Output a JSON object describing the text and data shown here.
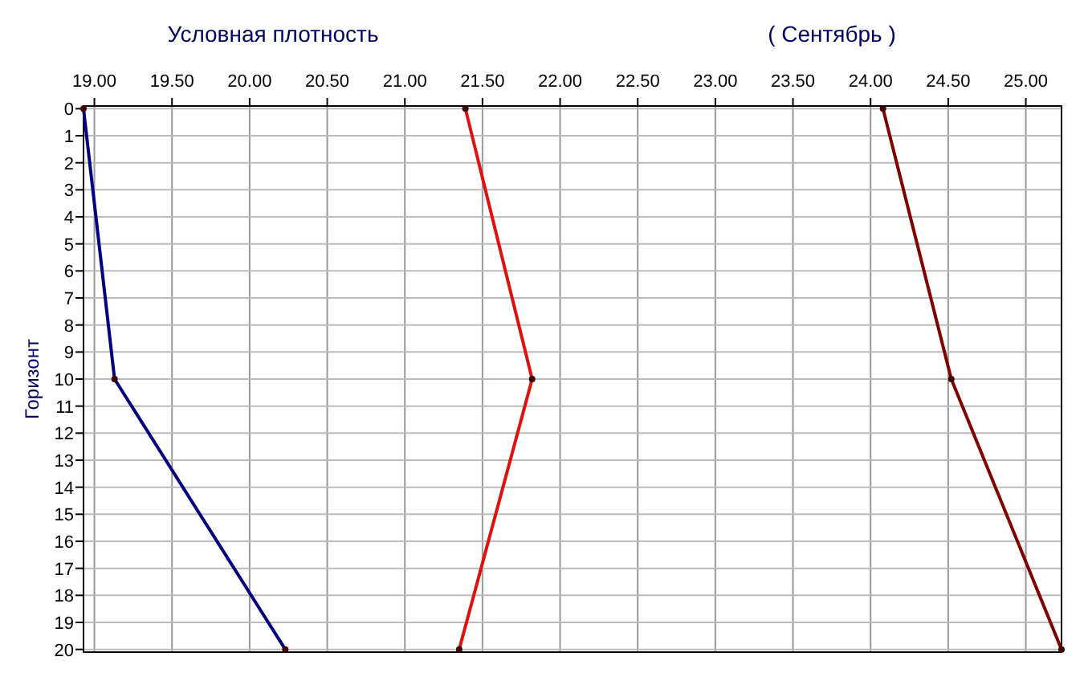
{
  "chart_data": {
    "type": "line",
    "title": "Условная плотность",
    "subtitle": "( Сентябрь )",
    "ylabel": "Горизонт",
    "xlim": [
      18.93,
      25.23
    ],
    "xticks": [
      {
        "value": 19,
        "label": "19.00"
      },
      {
        "value": 19.5,
        "label": "19.50"
      },
      {
        "value": 20,
        "label": "20.00"
      },
      {
        "value": 20.5,
        "label": "20.50"
      },
      {
        "value": 21,
        "label": "21.00"
      },
      {
        "value": 21.5,
        "label": "21.50"
      },
      {
        "value": 22,
        "label": "22.00"
      },
      {
        "value": 22.5,
        "label": "22.50"
      },
      {
        "value": 23,
        "label": "23.00"
      },
      {
        "value": 23.5,
        "label": "23.50"
      },
      {
        "value": 24,
        "label": "24.00"
      },
      {
        "value": 24.5,
        "label": "24.50"
      },
      {
        "value": 25,
        "label": "25.00"
      }
    ],
    "ylim": [
      20.1,
      -0.1
    ],
    "yticks": [
      0,
      1,
      2,
      3,
      4,
      5,
      6,
      7,
      8,
      9,
      10,
      11,
      12,
      13,
      14,
      15,
      16,
      17,
      18,
      19,
      20
    ],
    "grid": true,
    "marker": "circle",
    "line_style": "solid",
    "series": [
      {
        "color": "#000080",
        "x": [
          18.93,
          19.13,
          20.23
        ],
        "values": [
          0,
          10,
          20
        ]
      },
      {
        "color": "#e01010",
        "x": [
          21.39,
          21.82,
          21.35
        ],
        "values": [
          0,
          10,
          20
        ]
      },
      {
        "color": "#800000",
        "x": [
          24.08,
          24.52,
          25.23
        ],
        "values": [
          0,
          10,
          20
        ]
      }
    ]
  }
}
